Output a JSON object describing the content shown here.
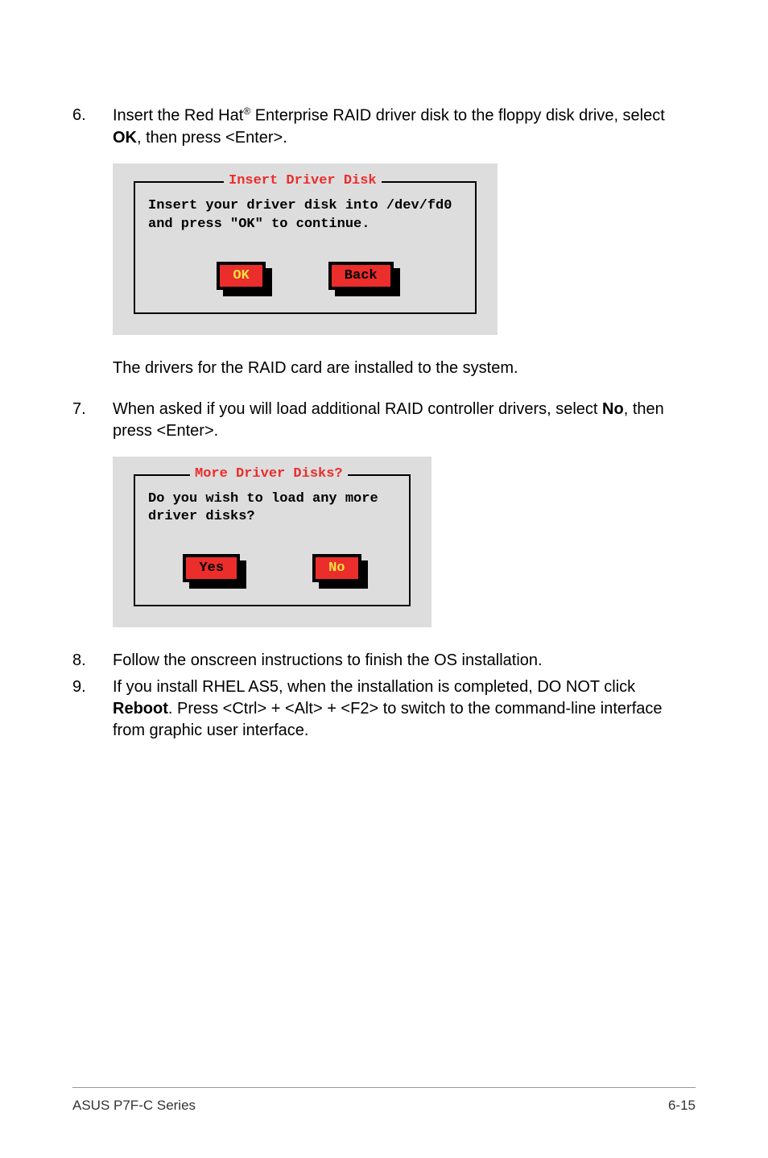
{
  "step6": {
    "num": "6.",
    "text_a": "Insert the Red Hat",
    "sup": "®",
    "text_b": " Enterprise RAID driver disk to the floppy disk drive, select ",
    "bold": "OK",
    "text_c": ", then press <Enter>."
  },
  "dialog1": {
    "title": "Insert Driver Disk",
    "body": "Insert your driver disk into /dev/fd0 and press \"OK\" to continue.",
    "ok": "OK",
    "back": "Back"
  },
  "para_after_d1": "The drivers for the RAID card are installed to the system.",
  "step7": {
    "num": "7.",
    "text_a": "When asked if you will load additional RAID controller drivers, select ",
    "bold": "No",
    "text_b": ", then press <Enter>."
  },
  "dialog2": {
    "title": "More Driver Disks?",
    "body": "Do you wish to load any more driver disks?",
    "yes": "Yes",
    "no": "No"
  },
  "step8": {
    "num": "8.",
    "text": "Follow the onscreen instructions to finish the OS installation."
  },
  "step9": {
    "num": "9.",
    "text_a": "If you install RHEL AS5, when the installation is completed, DO NOT click ",
    "bold": "Reboot",
    "text_b": ". Press <Ctrl> + <Alt> + <F2> to switch to the command-line interface from graphic user interface."
  },
  "footer": {
    "left": "ASUS P7F-C Series",
    "right": "6-15"
  }
}
